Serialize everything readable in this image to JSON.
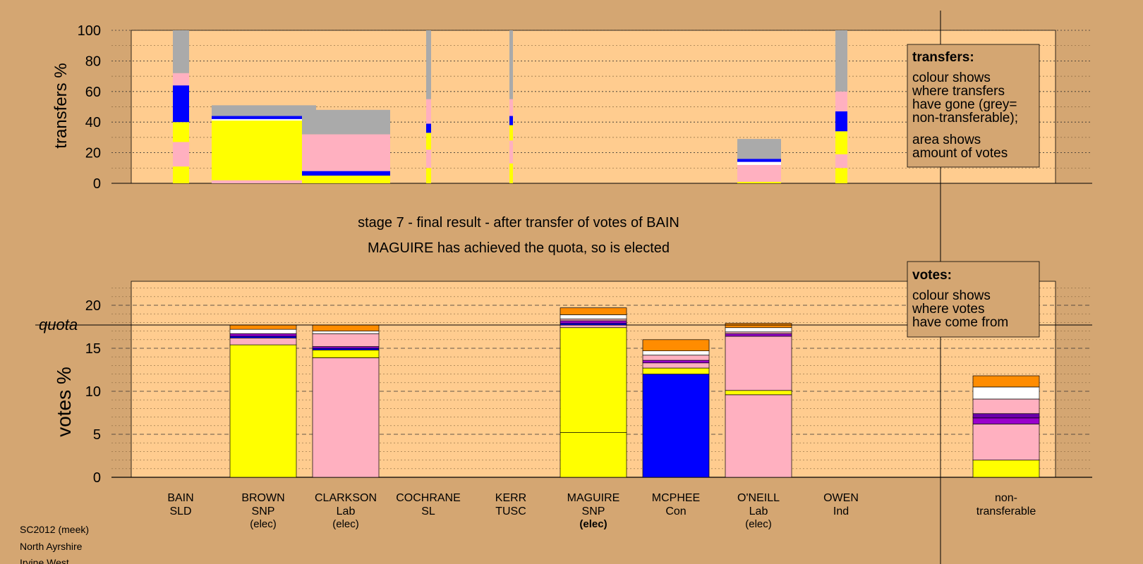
{
  "colors": {
    "page": "#d4a672",
    "plot": "#ffcc8f",
    "SNP": "#ffff00",
    "Lab": "#ffb0c0",
    "Con": "#0000ff",
    "SLD": "#ff8c00",
    "SL": "#9a00cc",
    "TUSC": "#6a00aa",
    "Ind": "#ffffff",
    "nontransferable": "#aaaaaa"
  },
  "chart_data": [
    {
      "type": "bar",
      "stacked": true,
      "ylabel": "transfers %",
      "ylim": [
        0,
        100
      ],
      "yticks": [
        0,
        20,
        40,
        60,
        80,
        100
      ],
      "grid": "dotted",
      "legend": {
        "title": "transfers:",
        "lines": [
          "colour shows",
          "where transfers",
          "have gone (grey=",
          "non-transferable);",
          "area shows",
          "amount of votes"
        ]
      },
      "columns": [
        {
          "candidate": "BAIN",
          "segments": [
            {
              "to": "SNP",
              "value": 11
            },
            {
              "to": "Lab",
              "value": 16
            },
            {
              "to": "SNP",
              "value": 13
            },
            {
              "to": "Con",
              "value": 24
            },
            {
              "to": "Lab",
              "value": 8
            },
            {
              "to": "nontransferable",
              "value": 28
            }
          ]
        },
        {
          "candidate": "BROWN",
          "segments": [
            {
              "to": "Lab",
              "value": 2
            },
            {
              "to": "SNP",
              "value": 39
            },
            {
              "to": "Ind",
              "value": 1
            },
            {
              "to": "Con",
              "value": 2
            },
            {
              "to": "nontransferable",
              "value": 7
            }
          ]
        },
        {
          "candidate": "CLARKSON",
          "segments": [
            {
              "to": "SNP",
              "value": 5
            },
            {
              "to": "Con",
              "value": 3
            },
            {
              "to": "Lab",
              "value": 24
            },
            {
              "to": "nontransferable",
              "value": 16
            }
          ]
        },
        {
          "candidate": "COCHRANE",
          "segments": [
            {
              "to": "SNP",
              "value": 10
            },
            {
              "to": "Lab",
              "value": 12
            },
            {
              "to": "SNP",
              "value": 11
            },
            {
              "to": "Con",
              "value": 6
            },
            {
              "to": "Lab",
              "value": 16
            },
            {
              "to": "nontransferable",
              "value": 45
            }
          ]
        },
        {
          "candidate": "KERR",
          "segments": [
            {
              "to": "SNP",
              "value": 13
            },
            {
              "to": "Lab",
              "value": 15
            },
            {
              "to": "SNP",
              "value": 10
            },
            {
              "to": "Con",
              "value": 6
            },
            {
              "to": "Lab",
              "value": 11
            },
            {
              "to": "nontransferable",
              "value": 45
            }
          ]
        },
        {
          "candidate": "O'NEILL",
          "segments": [
            {
              "to": "SNP",
              "value": 1
            },
            {
              "to": "Lab",
              "value": 11
            },
            {
              "to": "Ind",
              "value": 2
            },
            {
              "to": "Con",
              "value": 2
            },
            {
              "to": "nontransferable",
              "value": 13
            }
          ]
        },
        {
          "candidate": "OWEN",
          "segments": [
            {
              "to": "SNP",
              "value": 10
            },
            {
              "to": "Lab",
              "value": 9
            },
            {
              "to": "SNP",
              "value": 15
            },
            {
              "to": "Con",
              "value": 13
            },
            {
              "to": "Lab",
              "value": 13
            },
            {
              "to": "nontransferable",
              "value": 40
            }
          ]
        }
      ]
    },
    {
      "type": "bar",
      "stacked": true,
      "ylabel": "votes %",
      "ylim": [
        0,
        23
      ],
      "yticks": [
        0,
        5,
        10,
        15,
        20
      ],
      "quota": 17.7,
      "quota_label": "quota",
      "legend": {
        "title": "votes:",
        "lines": [
          "colour shows",
          "where votes",
          "have come from"
        ]
      },
      "categories": [
        {
          "name": "BAIN",
          "party": "SLD",
          "status": ""
        },
        {
          "name": "BROWN",
          "party": "SNP",
          "status": "(elec)"
        },
        {
          "name": "CLARKSON",
          "party": "Lab",
          "status": "(elec)"
        },
        {
          "name": "COCHRANE",
          "party": "SL",
          "status": ""
        },
        {
          "name": "KERR",
          "party": "TUSC",
          "status": ""
        },
        {
          "name": "MAGUIRE",
          "party": "SNP",
          "status": "(elec)",
          "bold": true
        },
        {
          "name": "MCPHEE",
          "party": "Con",
          "status": ""
        },
        {
          "name": "O'NEILL",
          "party": "Lab",
          "status": "(elec)"
        },
        {
          "name": "OWEN",
          "party": "Ind",
          "status": ""
        },
        {
          "name": "non-",
          "party": "transferable",
          "status": ""
        }
      ],
      "stacks": [
        [],
        [
          {
            "from": "SNP",
            "value": 15.4
          },
          {
            "from": "Lab",
            "value": 0.8
          },
          {
            "from": "Con",
            "value": 0.2
          },
          {
            "from": "SL",
            "value": 0.3
          },
          {
            "from": "Ind",
            "value": 0.5
          },
          {
            "from": "SLD",
            "value": 0.5
          }
        ],
        [
          {
            "from": "Lab",
            "value": 13.9
          },
          {
            "from": "SNP",
            "value": 0.9
          },
          {
            "from": "Con",
            "value": 0.2
          },
          {
            "from": "SL",
            "value": 0.2
          },
          {
            "from": "Lab",
            "value": 1.5
          },
          {
            "from": "Ind",
            "value": 0.3
          },
          {
            "from": "SLD",
            "value": 0.7
          }
        ],
        [],
        [],
        [
          {
            "from": "SNP",
            "value": 5.2
          },
          {
            "from": "SNP",
            "value": 12.2
          },
          {
            "from": "Lab",
            "value": 0.3
          },
          {
            "from": "Con",
            "value": 0.2
          },
          {
            "from": "SL",
            "value": 0.3
          },
          {
            "from": "Lab",
            "value": 0.2
          },
          {
            "from": "Ind",
            "value": 0.5
          },
          {
            "from": "SLD",
            "value": 0.8
          }
        ],
        [
          {
            "from": "Con",
            "value": 12.0
          },
          {
            "from": "SNP",
            "value": 0.7
          },
          {
            "from": "Lab",
            "value": 0.6
          },
          {
            "from": "SL",
            "value": 0.3
          },
          {
            "from": "Lab",
            "value": 0.6
          },
          {
            "from": "Ind",
            "value": 0.5
          },
          {
            "from": "SLD",
            "value": 1.3
          }
        ],
        [
          {
            "from": "Lab",
            "value": 9.6
          },
          {
            "from": "SNP",
            "value": 0.5
          },
          {
            "from": "Lab",
            "value": 6.3
          },
          {
            "from": "SL",
            "value": 0.3
          },
          {
            "from": "Lab",
            "value": 0.2
          },
          {
            "from": "Ind",
            "value": 0.5
          },
          {
            "from": "SLD",
            "value": 0.5
          }
        ],
        [],
        [
          {
            "from": "SNP",
            "value": 2.0
          },
          {
            "from": "Lab",
            "value": 4.2
          },
          {
            "from": "SL",
            "value": 0.7
          },
          {
            "from": "TUSC",
            "value": 0.5
          },
          {
            "from": "Lab",
            "value": 1.7
          },
          {
            "from": "Ind",
            "value": 1.4
          },
          {
            "from": "SLD",
            "value": 1.3
          }
        ]
      ]
    }
  ],
  "stage_title": "stage 7 - final result - after transfer of votes of BAIN",
  "stage_subtitle": "MAGUIRE has achieved the quota, so is elected",
  "footer": [
    "SC2012 (meek)",
    "North Ayrshire",
    "Irvine West"
  ]
}
